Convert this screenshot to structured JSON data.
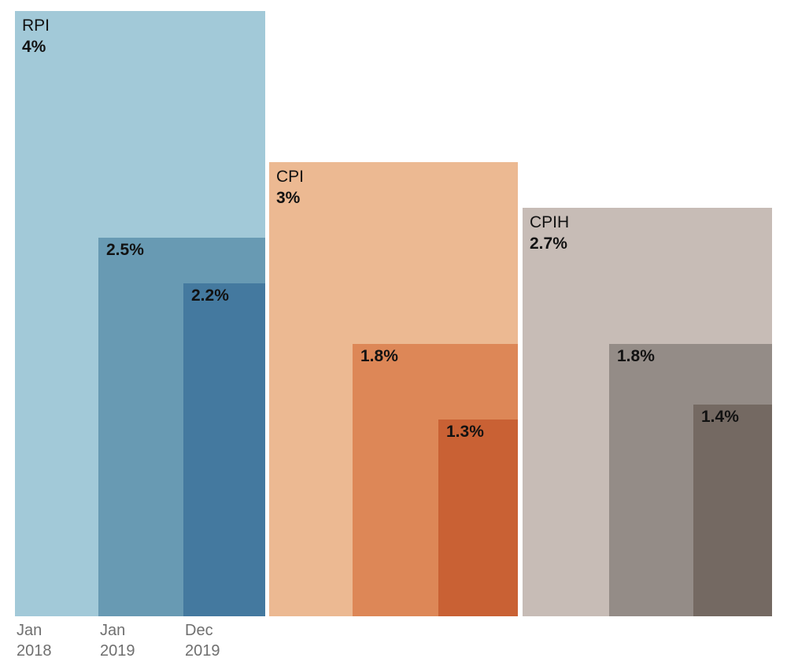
{
  "chart_data": {
    "type": "bar",
    "layout": "nested-overlapping-groups",
    "title": "",
    "xlabel": "",
    "ylabel": "",
    "ylim": [
      0,
      4
    ],
    "grid": false,
    "legend_position": "none",
    "value_format": "percent",
    "background_color": "#ffffff",
    "label_color": "#121212",
    "axis_label_color": "#6f6f6f",
    "categories": [
      "Jan 2018",
      "Jan 2019",
      "Dec 2019"
    ],
    "x_tick_lines": [
      [
        "Jan",
        "2018"
      ],
      [
        "Jan",
        "2019"
      ],
      [
        "Dec",
        "2019"
      ]
    ],
    "series": [
      {
        "name": "RPI",
        "values": [
          4,
          2.5,
          2.2
        ],
        "value_labels": [
          "4%",
          "2.5%",
          "2.2%"
        ],
        "colors": [
          "#a2c9d8",
          "#689ab3",
          "#44799f"
        ]
      },
      {
        "name": "CPI",
        "values": [
          3,
          1.8,
          1.3
        ],
        "value_labels": [
          "3%",
          "1.8%",
          "1.3%"
        ],
        "colors": [
          "#ecb992",
          "#dd8757",
          "#c96134"
        ]
      },
      {
        "name": "CPIH",
        "values": [
          2.7,
          1.8,
          1.4
        ],
        "value_labels": [
          "2.7%",
          "1.8%",
          "1.4%"
        ],
        "colors": [
          "#c7bcb6",
          "#948c87",
          "#746962"
        ]
      }
    ]
  }
}
